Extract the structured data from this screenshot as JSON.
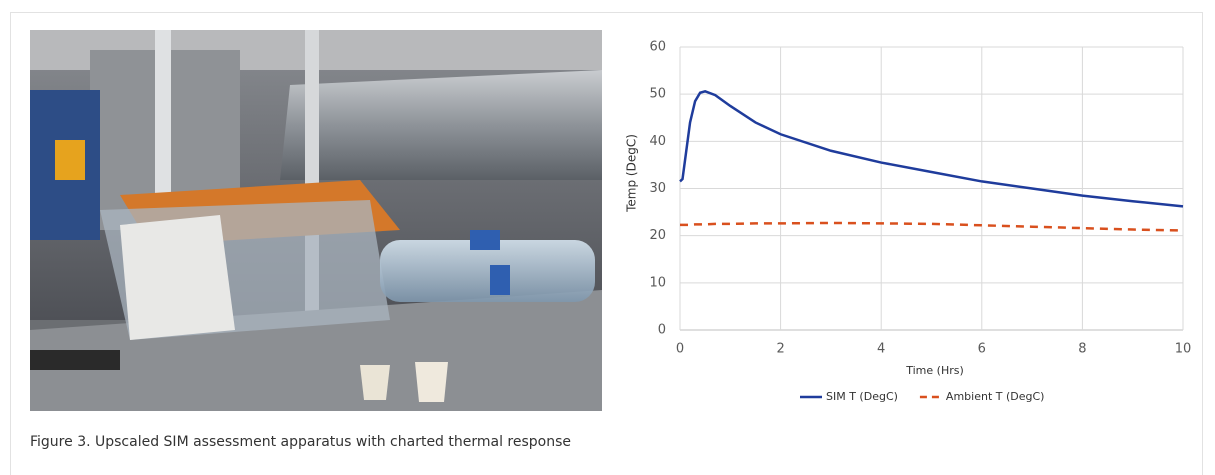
{
  "chart_data": {
    "type": "line",
    "x_label": "Time (Hrs)",
    "y_label": "Temp (DegC)",
    "x": [
      0,
      0.05,
      0.1,
      0.2,
      0.3,
      0.4,
      0.5,
      0.7,
      1,
      1.5,
      2,
      3,
      4,
      5,
      6,
      7,
      8,
      9,
      10
    ],
    "series": [
      {
        "name": "SIM T (DegC)",
        "color": "#1f3c9c",
        "style": "solid",
        "values": [
          31.5,
          32,
          36,
          44,
          48.5,
          50.3,
          50.6,
          49.8,
          47.5,
          44,
          41.5,
          38,
          35.5,
          33.5,
          31.5,
          30,
          28.5,
          27.3,
          26.2
        ]
      },
      {
        "name": "Ambient T (DegC)",
        "color": "#d9501e",
        "style": "dashed",
        "values": [
          22.3,
          22.3,
          22.3,
          22.3,
          22.4,
          22.4,
          22.4,
          22.5,
          22.5,
          22.6,
          22.6,
          22.7,
          22.6,
          22.5,
          22.2,
          21.9,
          21.6,
          21.3,
          21.1
        ]
      }
    ],
    "xlim": [
      0,
      10
    ],
    "xticks": [
      0,
      2,
      4,
      6,
      8,
      10
    ],
    "ylim": [
      0,
      60
    ],
    "yticks": [
      0,
      10,
      20,
      30,
      40,
      50,
      60
    ],
    "grid": true,
    "legend": "bottom"
  },
  "caption": "Figure 3. Upscaled SIM assessment apparatus with charted thermal response"
}
